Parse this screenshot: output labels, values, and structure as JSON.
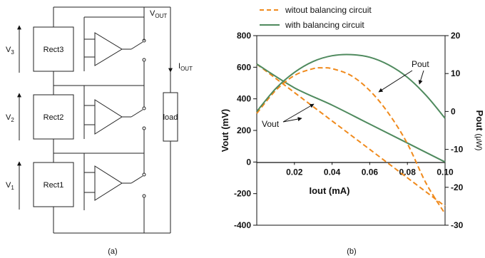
{
  "circuit": {
    "blocks": [
      "Rect3",
      "Rect2",
      "Rect1"
    ],
    "voltages": [
      {
        "base": "V",
        "sub": "3"
      },
      {
        "base": "V",
        "sub": "2"
      },
      {
        "base": "V",
        "sub": "1"
      }
    ],
    "vout": {
      "base": "V",
      "sub": "OUT"
    },
    "iout": {
      "base": "I",
      "sub": "OUT"
    },
    "load_label": "load",
    "caption": "(a)"
  },
  "chart_caption": "(b)",
  "chart_data": {
    "type": "line",
    "legend": [
      "witout balancing circuit",
      "with balancing circuit"
    ],
    "xlabel": "Iout (mA)",
    "ylabel_left": "Vout (mV)",
    "ylabel_right_main": "Pout",
    "ylabel_right_unit": "(μW)",
    "xlim": [
      0,
      0.1
    ],
    "ylim_left": [
      -400,
      800
    ],
    "ylim_right": [
      -30,
      20
    ],
    "xticks": [
      "0.02",
      "0.04",
      "0.06",
      "0.08",
      "0.10"
    ],
    "yticks_left": [
      "-400",
      "-200",
      "0",
      "200",
      "400",
      "600",
      "800"
    ],
    "yticks_right": [
      "-30",
      "-20",
      "-10",
      "0",
      "10",
      "20"
    ],
    "annotations": [
      "Vout",
      "Pout"
    ],
    "colors": {
      "without": "#f08a1c",
      "with": "#4f8a5e"
    },
    "series": [
      {
        "name": "witout balancing circuit",
        "quantity": "Vout",
        "axis": "left",
        "style": "dashed",
        "x": [
          0,
          0.02,
          0.04,
          0.06,
          0.08,
          0.095,
          0.1
        ],
        "y": [
          620,
          440,
          260,
          80,
          -100,
          -235,
          -280
        ]
      },
      {
        "name": "with balancing circuit",
        "quantity": "Vout",
        "axis": "left",
        "style": "solid",
        "x": [
          0,
          0.02,
          0.04,
          0.06,
          0.08,
          0.1
        ],
        "y": [
          620,
          470,
          360,
          240,
          120,
          0
        ]
      },
      {
        "name": "witout balancing circuit",
        "quantity": "Pout",
        "axis": "right",
        "style": "dashed",
        "x": [
          0,
          0.01,
          0.02,
          0.03,
          0.035,
          0.04,
          0.05,
          0.06,
          0.07,
          0.08,
          0.09,
          0.1
        ],
        "y": [
          -0.5,
          5.5,
          9.5,
          11.3,
          11.5,
          11.3,
          9.5,
          5.5,
          -0.5,
          -8.5,
          -19,
          -27
        ]
      },
      {
        "name": "with balancing circuit",
        "quantity": "Pout",
        "axis": "right",
        "style": "solid",
        "x": [
          0,
          0.01,
          0.02,
          0.03,
          0.04,
          0.05,
          0.06,
          0.07,
          0.08,
          0.09,
          0.1
        ],
        "y": [
          0,
          6,
          10.3,
          13.2,
          14.7,
          15,
          14.3,
          12.3,
          9,
          4.2,
          -1.8
        ]
      }
    ]
  }
}
